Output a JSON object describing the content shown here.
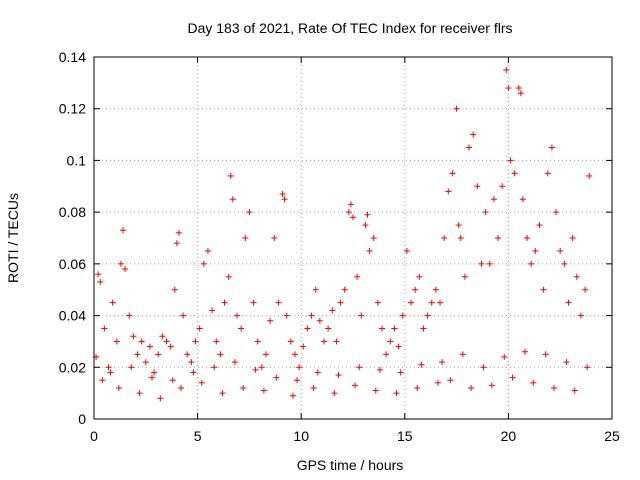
{
  "chart_data": {
    "type": "scatter",
    "title": "Day 183 of 2021, Rate Of TEC Index for receiver flrs",
    "xlabel": "GPS time / hours",
    "ylabel": "ROTI / TECUs",
    "xlim": [
      0,
      25
    ],
    "ylim": [
      0,
      0.14
    ],
    "x_ticks": [
      0,
      5,
      10,
      15,
      20,
      25
    ],
    "x_tick_labels": [
      "0",
      "5",
      "10",
      "15",
      "20",
      "25"
    ],
    "y_ticks": [
      0,
      0.02,
      0.04,
      0.06,
      0.08,
      0.1,
      0.12,
      0.14
    ],
    "y_tick_labels": [
      "0",
      "0.02",
      "0.04",
      "0.06",
      "0.08",
      "0.1",
      "0.12",
      "0.14"
    ],
    "grid": true,
    "marker": "plus",
    "color": "#ff0000",
    "series": [
      {
        "name": "",
        "x": [
          0.1,
          0.2,
          0.3,
          0.5,
          0.7,
          0.9,
          1.1,
          1.3,
          1.4,
          1.5,
          1.7,
          1.9,
          2.1,
          2.3,
          2.5,
          2.7,
          2.9,
          3.1,
          3.3,
          3.5,
          3.7,
          3.9,
          4.0,
          4.1,
          4.3,
          4.5,
          4.7,
          4.9,
          5.1,
          5.3,
          5.5,
          5.7,
          5.9,
          6.1,
          6.3,
          6.5,
          6.6,
          6.7,
          6.9,
          7.1,
          7.3,
          7.5,
          7.7,
          7.9,
          8.1,
          8.3,
          8.5,
          8.7,
          8.9,
          9.1,
          9.2,
          9.3,
          9.5,
          9.7,
          9.9,
          10.1,
          10.3,
          10.5,
          10.7,
          10.9,
          11.1,
          11.3,
          11.5,
          11.7,
          11.9,
          12.1,
          12.3,
          12.4,
          12.5,
          12.7,
          12.9,
          13.1,
          13.2,
          13.3,
          13.5,
          13.7,
          13.9,
          14.1,
          14.3,
          14.5,
          14.7,
          14.9,
          15.1,
          15.3,
          15.5,
          15.7,
          15.9,
          16.1,
          16.3,
          16.5,
          16.7,
          16.9,
          17.1,
          17.3,
          17.5,
          17.6,
          17.7,
          17.9,
          18.1,
          18.3,
          18.5,
          18.7,
          18.9,
          19.1,
          19.3,
          19.5,
          19.7,
          19.9,
          20.0,
          20.1,
          20.3,
          20.5,
          20.6,
          20.7,
          20.9,
          21.1,
          21.3,
          21.5,
          21.7,
          21.9,
          22.1,
          22.3,
          22.5,
          22.7,
          22.9,
          23.1,
          23.3,
          23.5,
          23.7,
          23.9,
          0.4,
          1.2,
          2.2,
          3.2,
          4.2,
          5.2,
          6.2,
          7.2,
          8.2,
          9.6,
          10.6,
          11.6,
          12.6,
          13.6,
          14.6,
          15.6,
          16.6,
          17.2,
          18.2,
          19.2,
          20.2,
          21.2,
          22.2,
          23.2,
          0.8,
          1.8,
          2.8,
          3.8,
          4.8,
          5.8,
          6.8,
          7.8,
          8.8,
          9.8,
          10.8,
          11.8,
          12.8,
          13.8,
          14.8,
          15.8,
          16.8,
          17.8,
          18.8,
          19.8,
          20.8,
          21.8,
          22.8,
          23.8
        ],
        "y": [
          0.024,
          0.056,
          0.053,
          0.035,
          0.02,
          0.045,
          0.03,
          0.06,
          0.073,
          0.058,
          0.04,
          0.032,
          0.025,
          0.03,
          0.022,
          0.028,
          0.018,
          0.025,
          0.032,
          0.03,
          0.028,
          0.05,
          0.068,
          0.072,
          0.04,
          0.025,
          0.022,
          0.03,
          0.035,
          0.06,
          0.065,
          0.042,
          0.03,
          0.025,
          0.045,
          0.055,
          0.094,
          0.085,
          0.04,
          0.035,
          0.07,
          0.08,
          0.045,
          0.03,
          0.02,
          0.025,
          0.038,
          0.07,
          0.045,
          0.087,
          0.085,
          0.04,
          0.03,
          0.025,
          0.02,
          0.028,
          0.035,
          0.04,
          0.05,
          0.038,
          0.03,
          0.035,
          0.042,
          0.03,
          0.045,
          0.05,
          0.08,
          0.083,
          0.078,
          0.055,
          0.04,
          0.075,
          0.079,
          0.065,
          0.07,
          0.045,
          0.035,
          0.025,
          0.03,
          0.035,
          0.028,
          0.04,
          0.065,
          0.045,
          0.05,
          0.055,
          0.035,
          0.04,
          0.045,
          0.05,
          0.045,
          0.07,
          0.088,
          0.095,
          0.12,
          0.075,
          0.07,
          0.055,
          0.105,
          0.11,
          0.09,
          0.06,
          0.08,
          0.06,
          0.085,
          0.07,
          0.09,
          0.135,
          0.128,
          0.1,
          0.095,
          0.128,
          0.126,
          0.085,
          0.07,
          0.06,
          0.065,
          0.075,
          0.05,
          0.095,
          0.105,
          0.08,
          0.065,
          0.06,
          0.045,
          0.07,
          0.055,
          0.04,
          0.05,
          0.094,
          0.015,
          0.012,
          0.01,
          0.008,
          0.012,
          0.014,
          0.01,
          0.012,
          0.011,
          0.009,
          0.012,
          0.01,
          0.013,
          0.011,
          0.01,
          0.012,
          0.014,
          0.015,
          0.012,
          0.013,
          0.016,
          0.014,
          0.012,
          0.011,
          0.018,
          0.02,
          0.016,
          0.015,
          0.018,
          0.02,
          0.022,
          0.019,
          0.016,
          0.015,
          0.018,
          0.017,
          0.02,
          0.019,
          0.018,
          0.021,
          0.022,
          0.025,
          0.02,
          0.024,
          0.026,
          0.025,
          0.022,
          0.02
        ]
      }
    ]
  }
}
